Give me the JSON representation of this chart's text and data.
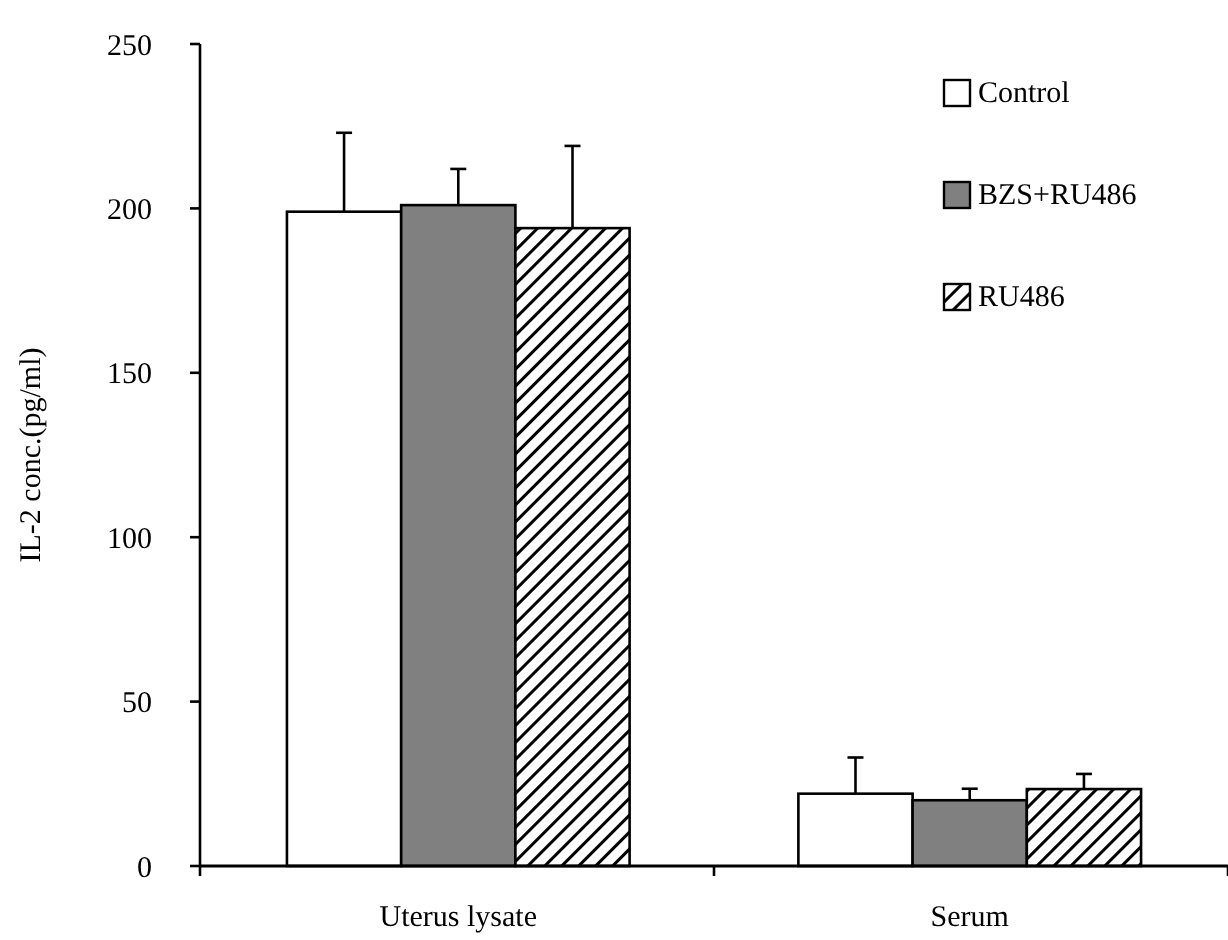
{
  "chart_data": {
    "type": "bar",
    "ylabel": "IL-2 conc.(pg/ml)",
    "categories": [
      "Uterus lysate",
      "Serum"
    ],
    "series": [
      {
        "name": "Control",
        "color": "#ffffff",
        "values": [
          199,
          22
        ],
        "errors": [
          24,
          11
        ]
      },
      {
        "name": "BZS+RU486",
        "color": "#808080",
        "values": [
          201,
          20
        ],
        "errors": [
          11,
          3.5
        ]
      },
      {
        "name": "RU486",
        "color": "#000000",
        "values": [
          194,
          23.4
        ],
        "errors": [
          25,
          4.6
        ]
      }
    ],
    "ylim": [
      0,
      250
    ],
    "yticks": [
      0,
      50,
      100,
      150,
      200,
      250
    ],
    "legend": "top right",
    "grid": false
  }
}
